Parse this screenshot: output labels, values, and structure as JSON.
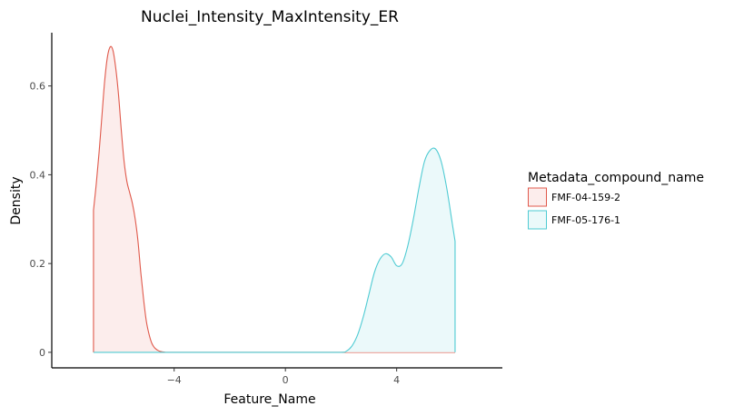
{
  "chart_data": {
    "type": "area",
    "title": "Nuclei_Intensity_MaxIntensity_ER",
    "xlabel": "Feature_Name",
    "ylabel": "Density",
    "xlim": [
      -8.4,
      7.8
    ],
    "ylim": [
      -0.035,
      0.72
    ],
    "x_ticks": [
      -4,
      0,
      4
    ],
    "x_tick_labels": [
      "−4",
      "0",
      "4"
    ],
    "y_ticks": [
      0,
      0.2,
      0.4,
      0.6
    ],
    "y_tick_labels": [
      "0",
      "0.2",
      "0.4",
      "0.6"
    ],
    "grid": false,
    "legend": {
      "title": "Metadata_compound_name",
      "placement": "right"
    },
    "series": [
      {
        "name": "FMF-04-159-2",
        "color": "#E0594B",
        "fill": "#FCEDEC",
        "x": [
          -6.9,
          -6.8,
          -6.7,
          -6.6,
          -6.5,
          -6.4,
          -6.3,
          -6.2,
          -6.1,
          -6.0,
          -5.9,
          -5.8,
          -5.7,
          -5.6,
          -5.5,
          -5.4,
          -5.3,
          -5.2,
          -5.1,
          -5.0,
          -4.9,
          -4.8,
          -4.7,
          -4.6,
          -4.5,
          -4.4,
          -4.3,
          -4.2,
          -4.0,
          2.0,
          6.1
        ],
        "y": [
          0.32,
          0.38,
          0.45,
          0.53,
          0.61,
          0.665,
          0.688,
          0.68,
          0.64,
          0.58,
          0.5,
          0.43,
          0.385,
          0.36,
          0.335,
          0.3,
          0.25,
          0.18,
          0.12,
          0.07,
          0.04,
          0.02,
          0.01,
          0.005,
          0.002,
          0.001,
          0.0,
          0.0,
          0.0,
          0.0,
          0.0
        ]
      },
      {
        "name": "FMF-05-176-1",
        "color": "#4FCBD3",
        "fill": "#EBF9FA",
        "x": [
          -6.9,
          1.0,
          2.0,
          2.2,
          2.4,
          2.6,
          2.8,
          3.0,
          3.2,
          3.4,
          3.6,
          3.8,
          4.0,
          4.2,
          4.4,
          4.6,
          4.8,
          5.0,
          5.2,
          5.4,
          5.6,
          5.8,
          6.0,
          6.1
        ],
        "y": [
          0.0,
          0.0,
          0.0,
          0.003,
          0.015,
          0.04,
          0.08,
          0.13,
          0.18,
          0.21,
          0.222,
          0.215,
          0.195,
          0.2,
          0.24,
          0.3,
          0.37,
          0.43,
          0.455,
          0.458,
          0.43,
          0.37,
          0.29,
          0.25
        ]
      }
    ]
  }
}
